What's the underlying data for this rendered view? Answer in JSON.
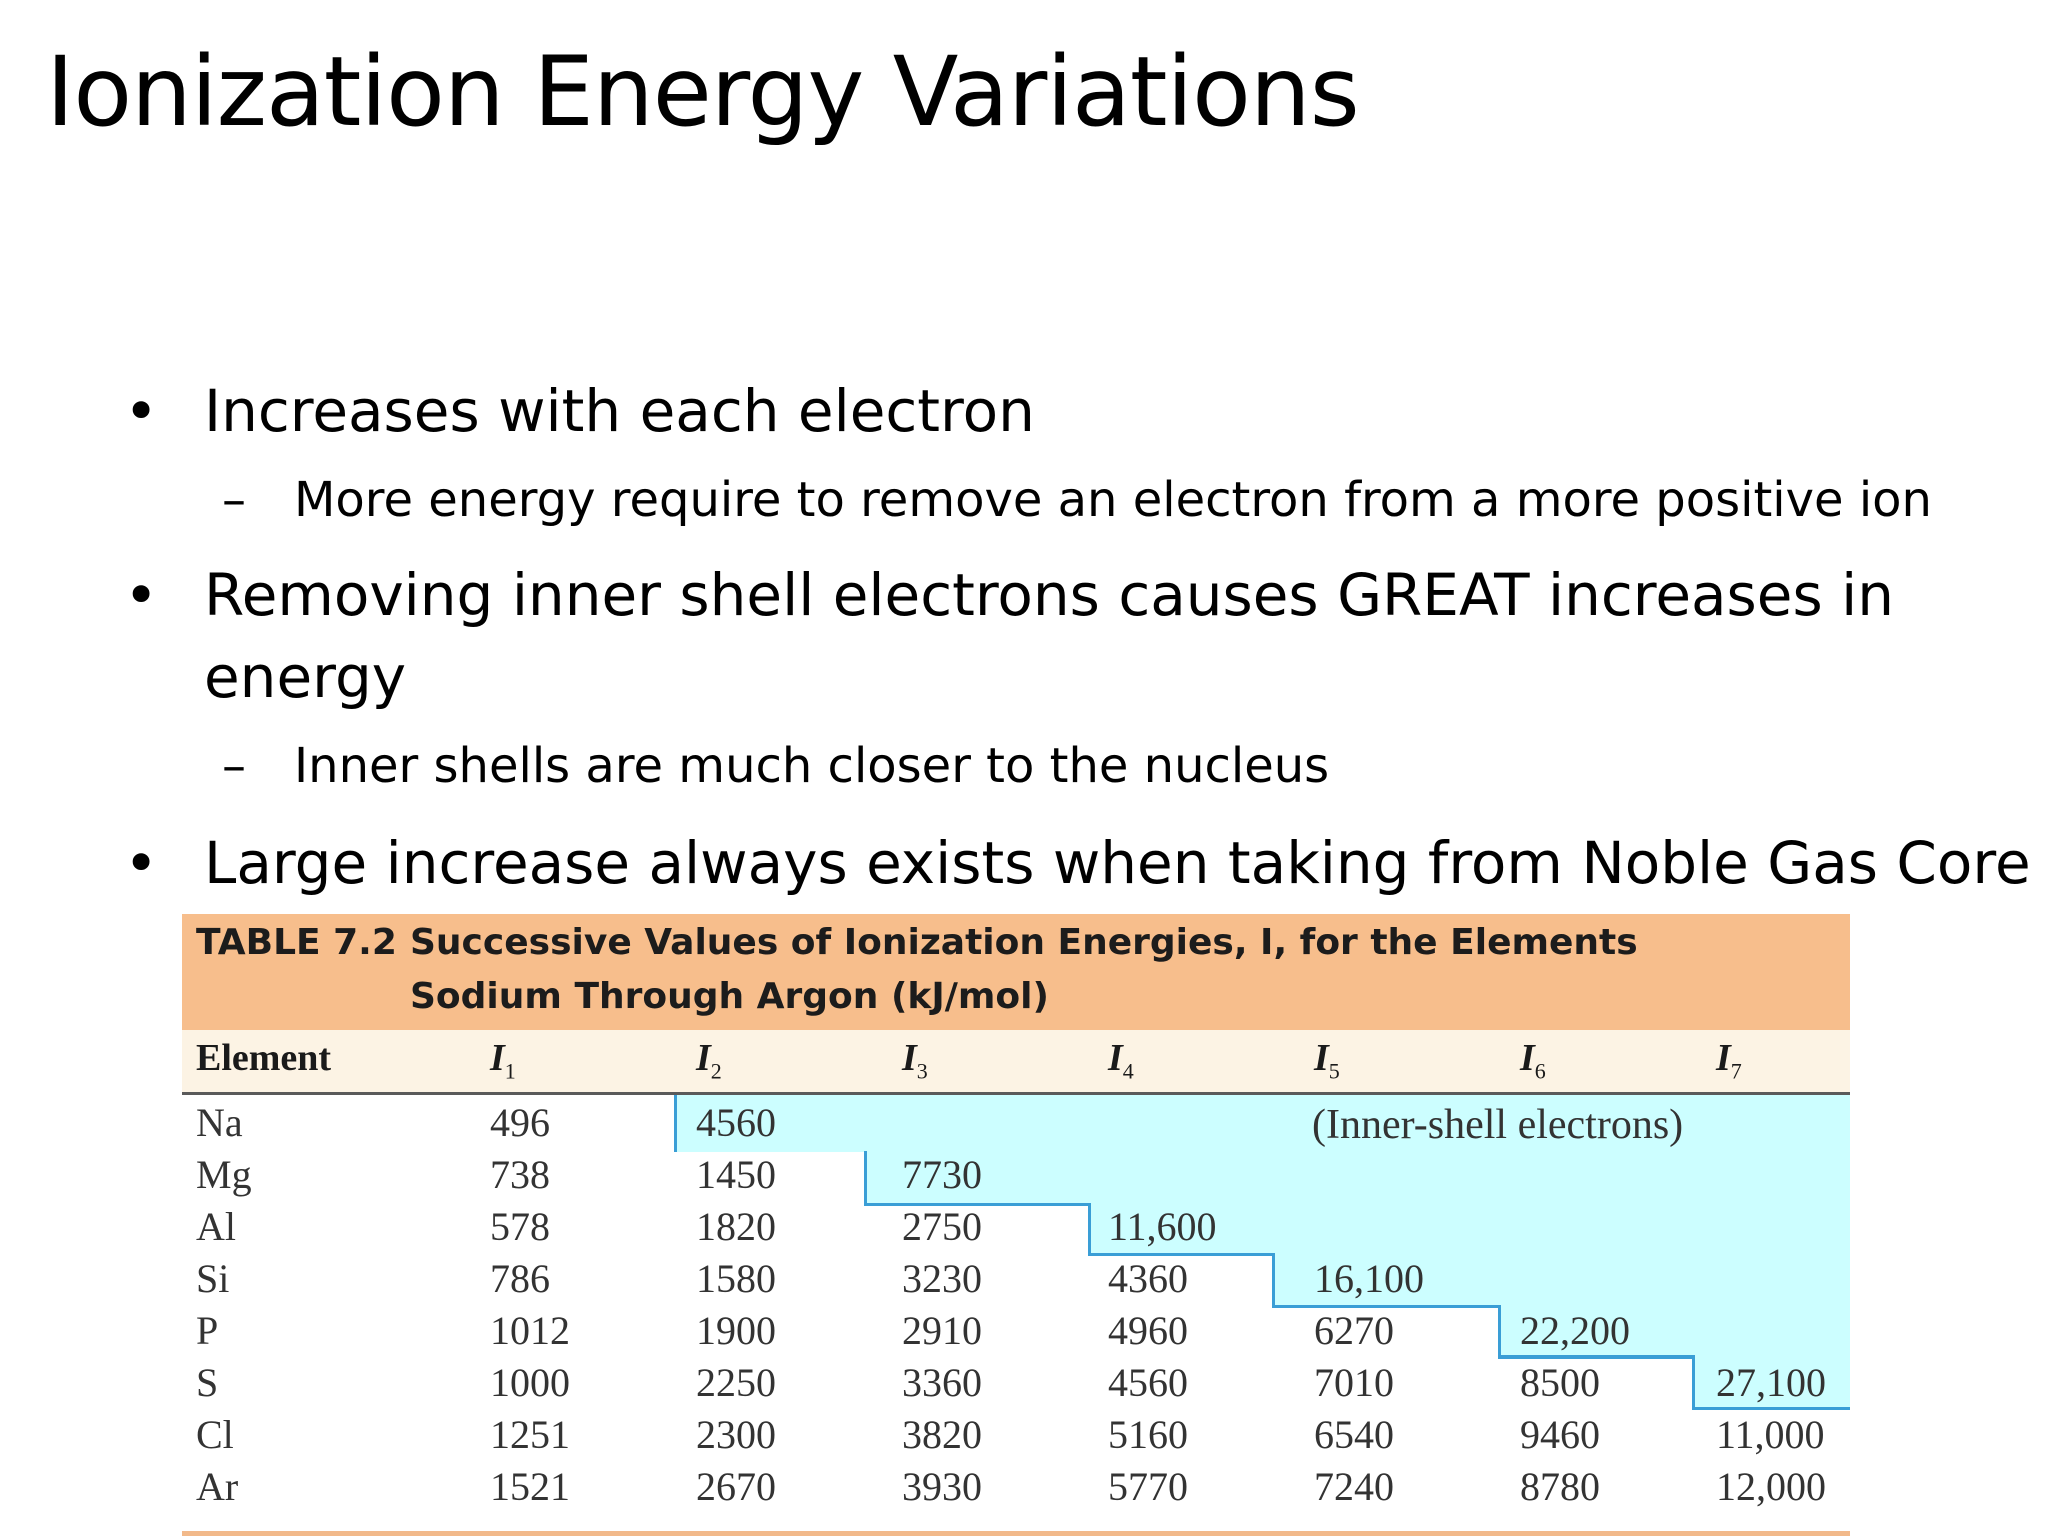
{
  "slide": {
    "title": "Ionization Energy Variations",
    "bullets": [
      {
        "text": "Increases with each electron",
        "sub": [
          "More energy require to remove an electron from a more positive ion"
        ]
      },
      {
        "text": "Removing inner shell electrons causes GREAT increases in",
        "text_line2": "energy",
        "sub": [
          "Inner shells are much closer to the nucleus"
        ]
      },
      {
        "text": "Large increase always exists when taking from Noble Gas Core",
        "sub": []
      }
    ],
    "bullet_glyph": "•",
    "sub_glyph": "–"
  },
  "table": {
    "number": "TABLE 7.2",
    "caption_line1": "Successive Values of Ionization Energies, I, for the Elements",
    "caption_line2": "Sodium Through Argon (kJ/mol)",
    "col_element": "Element",
    "columns": [
      {
        "sym": "I",
        "sub": "1"
      },
      {
        "sym": "I",
        "sub": "2"
      },
      {
        "sym": "I",
        "sub": "3"
      },
      {
        "sym": "I",
        "sub": "4"
      },
      {
        "sym": "I",
        "sub": "5"
      },
      {
        "sym": "I",
        "sub": "6"
      },
      {
        "sym": "I",
        "sub": "7"
      }
    ],
    "inner_shell_note": "(Inner-shell electrons)",
    "rows": [
      {
        "element": "Na",
        "values": [
          "496",
          "4560",
          "",
          "",
          "",
          "",
          ""
        ]
      },
      {
        "element": "Mg",
        "values": [
          "738",
          "1450",
          "7730",
          "",
          "",
          "",
          ""
        ]
      },
      {
        "element": "Al",
        "values": [
          "578",
          "1820",
          "2750",
          "11,600",
          "",
          "",
          ""
        ]
      },
      {
        "element": "Si",
        "values": [
          "786",
          "1580",
          "3230",
          "4360",
          "16,100",
          "",
          ""
        ]
      },
      {
        "element": "P",
        "values": [
          "1012",
          "1900",
          "2910",
          "4960",
          "6270",
          "22,200",
          ""
        ]
      },
      {
        "element": "S",
        "values": [
          "1000",
          "2250",
          "3360",
          "4560",
          "7010",
          "8500",
          "27,100"
        ]
      },
      {
        "element": "Cl",
        "values": [
          "1251",
          "2300",
          "3820",
          "5160",
          "6540",
          "9460",
          "11,000"
        ]
      },
      {
        "element": "Ar",
        "values": [
          "1521",
          "2670",
          "3930",
          "5770",
          "7240",
          "8780",
          "12,000"
        ]
      }
    ],
    "colors": {
      "header_bg": "#f7be8c",
      "colhead_bg": "#fcf3e4",
      "inner_shell_bg": "#ccfeff",
      "step_line": "#3a9ed6"
    }
  }
}
